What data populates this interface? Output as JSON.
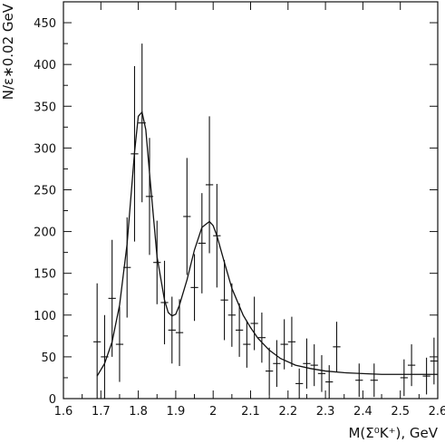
{
  "chart_data": {
    "type": "scatter",
    "title": "",
    "xlabel": "M(Σ⁰K⁺),  GeV",
    "ylabel": "N/ε∗0.02 GeV",
    "xlim": [
      1.6,
      2.6
    ],
    "ylim": [
      0,
      475
    ],
    "x_ticks": [
      1.6,
      1.7,
      1.8,
      1.9,
      2.0,
      2.1,
      2.2,
      2.3,
      2.4,
      2.5,
      2.6
    ],
    "x_tick_labels": [
      "1.6",
      "1.7",
      "1.8",
      "1.9",
      "2",
      "2.1",
      "2.2",
      "2.3",
      "2.4",
      "2.5",
      "2.6"
    ],
    "y_ticks": [
      0,
      50,
      100,
      150,
      200,
      250,
      300,
      350,
      400,
      450
    ],
    "y_tick_labels": [
      "0",
      "50",
      "100",
      "150",
      "200",
      "250",
      "300",
      "350",
      "400",
      "450"
    ],
    "grid": false,
    "series": [
      {
        "kind": "points_with_error_bars",
        "x": [
          1.69,
          1.71,
          1.73,
          1.75,
          1.77,
          1.79,
          1.81,
          1.83,
          1.85,
          1.87,
          1.89,
          1.91,
          1.93,
          1.95,
          1.97,
          1.99,
          2.01,
          2.03,
          2.05,
          2.07,
          2.09,
          2.11,
          2.13,
          2.15,
          2.17,
          2.19,
          2.21,
          2.23,
          2.25,
          2.27,
          2.29,
          2.31,
          2.33,
          2.39,
          2.43,
          2.51,
          2.53,
          2.57,
          2.59
        ],
        "y": [
          68,
          50,
          120,
          65,
          157,
          293,
          330,
          242,
          163,
          115,
          82,
          79,
          218,
          133,
          186,
          256,
          195,
          118,
          100,
          82,
          65,
          90,
          73,
          33,
          42,
          65,
          68,
          18,
          42,
          40,
          30,
          20,
          62,
          22,
          22,
          25,
          40,
          27,
          45
        ],
        "yerr": [
          70,
          50,
          70,
          45,
          60,
          105,
          95,
          70,
          50,
          50,
          40,
          40,
          70,
          40,
          60,
          82,
          62,
          48,
          38,
          32,
          28,
          32,
          30,
          28,
          28,
          30,
          30,
          18,
          30,
          25,
          22,
          20,
          30,
          20,
          20,
          22,
          25,
          22,
          28
        ]
      },
      {
        "kind": "fit_curve",
        "x": [
          1.69,
          1.71,
          1.73,
          1.75,
          1.77,
          1.79,
          1.8,
          1.81,
          1.82,
          1.83,
          1.85,
          1.87,
          1.88,
          1.89,
          1.9,
          1.91,
          1.93,
          1.95,
          1.97,
          1.99,
          2.0,
          2.01,
          2.03,
          2.05,
          2.08,
          2.1,
          2.12,
          2.15,
          2.18,
          2.22,
          2.26,
          2.3,
          2.35,
          2.4,
          2.45,
          2.5,
          2.55,
          2.6
        ],
        "y": [
          27,
          42,
          68,
          112,
          185,
          295,
          338,
          343,
          322,
          270,
          170,
          118,
          103,
          99,
          101,
          112,
          142,
          178,
          205,
          212,
          207,
          195,
          163,
          132,
          100,
          85,
          72,
          58,
          48,
          40,
          36,
          33,
          31,
          30,
          29,
          29,
          29,
          29
        ]
      }
    ]
  }
}
